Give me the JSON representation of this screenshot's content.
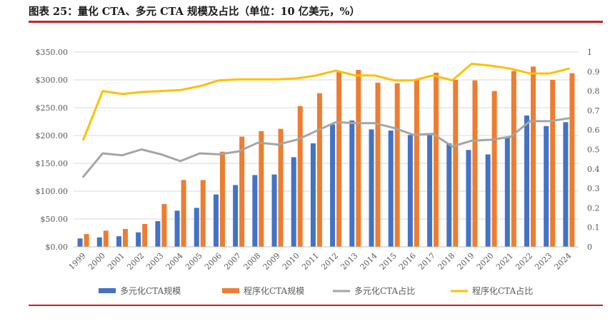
{
  "figure_title": "图表 25：量化 CTA、多元 CTA 规模及占比（单位：10 亿美元，%）",
  "colors": {
    "multi_bar": "#4472C4",
    "program_bar": "#ED7D31",
    "multi_line": "#A5A5A5",
    "program_line": "#FFC000",
    "rule": "#C72323",
    "grid": "#D9D9D9",
    "axis_text": "#595959"
  },
  "chart_data": {
    "type": "bar+line",
    "title": "",
    "categories": [
      "1999",
      "2000",
      "2001",
      "2002",
      "2003",
      "2004",
      "2005",
      "2006",
      "2007",
      "2008",
      "2009",
      "2010",
      "2011",
      "2012",
      "2013",
      "2014",
      "2015",
      "2016",
      "2017",
      "2018",
      "2019",
      "2020",
      "2021",
      "2022",
      "2023",
      "2024"
    ],
    "y_left": {
      "min": 0,
      "max": 350,
      "step": 50,
      "tick_labels": [
        "$0.00",
        "$50.00",
        "$100.00",
        "$150.00",
        "$200.00",
        "$250.00",
        "$300.00",
        "$350.00"
      ]
    },
    "y_right": {
      "min": 0,
      "max": 1,
      "step": 0.1,
      "tick_labels": [
        "0",
        "0.1",
        "0.2",
        "0.3",
        "0.4",
        "0.5",
        "0.6",
        "0.7",
        "0.8",
        "0.9",
        "1"
      ]
    },
    "series": [
      {
        "name": "多元化CTA规模",
        "type": "bar",
        "axis": "left",
        "values": [
          15,
          17,
          19,
          26,
          46,
          65,
          70,
          94,
          111,
          129,
          130,
          161,
          186,
          220,
          227,
          211,
          209,
          201,
          201,
          186,
          174,
          166,
          196,
          236,
          217,
          224
        ]
      },
      {
        "name": "程序化CTA规模",
        "type": "bar",
        "axis": "left",
        "values": [
          23,
          29,
          32,
          41,
          77,
          120,
          120,
          171,
          198,
          208,
          212,
          253,
          276,
          314,
          318,
          295,
          294,
          300,
          313,
          300,
          299,
          280,
          316,
          324,
          300,
          312
        ]
      },
      {
        "name": "多元化CTA占比",
        "type": "line",
        "axis": "right",
        "values": [
          0.36,
          0.48,
          0.47,
          0.5,
          0.475,
          0.44,
          0.48,
          0.475,
          0.49,
          0.535,
          0.525,
          0.55,
          0.595,
          0.64,
          0.635,
          0.635,
          0.61,
          0.575,
          0.58,
          0.515,
          0.545,
          0.55,
          0.565,
          0.645,
          0.645,
          0.66
        ]
      },
      {
        "name": "程序化CTA占比",
        "type": "line",
        "axis": "right",
        "values": [
          0.55,
          0.8,
          0.785,
          0.795,
          0.8,
          0.805,
          0.825,
          0.855,
          0.86,
          0.86,
          0.86,
          0.865,
          0.88,
          0.905,
          0.88,
          0.88,
          0.855,
          0.855,
          0.88,
          0.855,
          0.94,
          0.93,
          0.915,
          0.89,
          0.89,
          0.915
        ]
      }
    ],
    "legend": {
      "position": "bottom",
      "items": [
        "多元化CTA规模",
        "程序化CTA规模",
        "多元化CTA占比",
        "程序化CTA占比"
      ]
    },
    "grid": true
  }
}
